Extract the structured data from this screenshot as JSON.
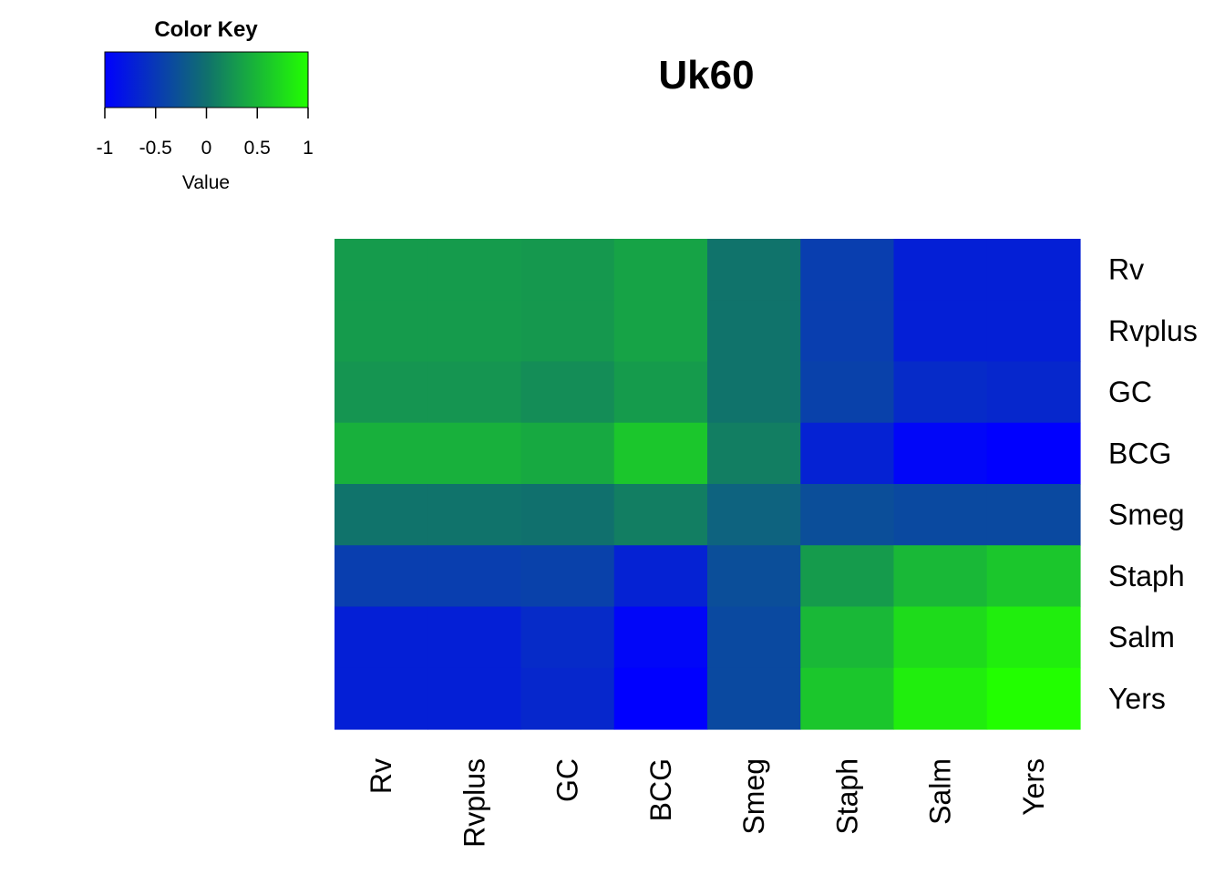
{
  "chart_data": {
    "type": "heatmap",
    "title": "Uk60",
    "row_labels": [
      "Rv",
      "Rvplus",
      "GC",
      "BCG",
      "Smeg",
      "Staph",
      "Salm",
      "Yers"
    ],
    "col_labels": [
      "Rv",
      "Rvplus",
      "GC",
      "BCG",
      "Smeg",
      "Staph",
      "Salm",
      "Yers"
    ],
    "values": [
      [
        0.3,
        0.3,
        0.28,
        0.36,
        0.02,
        -0.45,
        -0.72,
        -0.72
      ],
      [
        0.3,
        0.3,
        0.28,
        0.36,
        0.02,
        -0.45,
        -0.72,
        -0.72
      ],
      [
        0.26,
        0.26,
        0.2,
        0.3,
        0.02,
        -0.42,
        -0.62,
        -0.65
      ],
      [
        0.45,
        0.45,
        0.4,
        0.6,
        0.1,
        -0.7,
        -0.95,
        -1.0
      ],
      [
        0.02,
        0.02,
        0.0,
        0.1,
        -0.12,
        -0.3,
        -0.35,
        -0.35
      ],
      [
        -0.45,
        -0.45,
        -0.42,
        -0.7,
        -0.3,
        0.3,
        0.5,
        0.6
      ],
      [
        -0.72,
        -0.72,
        -0.62,
        -0.95,
        -0.35,
        0.5,
        0.75,
        0.88
      ],
      [
        -0.72,
        -0.72,
        -0.65,
        -1.0,
        -0.35,
        0.6,
        0.88,
        1.0
      ]
    ],
    "color_range": [
      -1,
      1
    ],
    "color_low": "#0000ff",
    "color_mid": "#10706d",
    "color_high": "#22ff00",
    "legend": {
      "title": "Color Key",
      "xlabel": "Value",
      "ticks": [
        -1,
        -0.5,
        0,
        0.5,
        1
      ],
      "tick_labels": [
        "-1",
        "-0.5",
        "0",
        "0.5",
        "1"
      ],
      "placement": "top-left"
    }
  }
}
